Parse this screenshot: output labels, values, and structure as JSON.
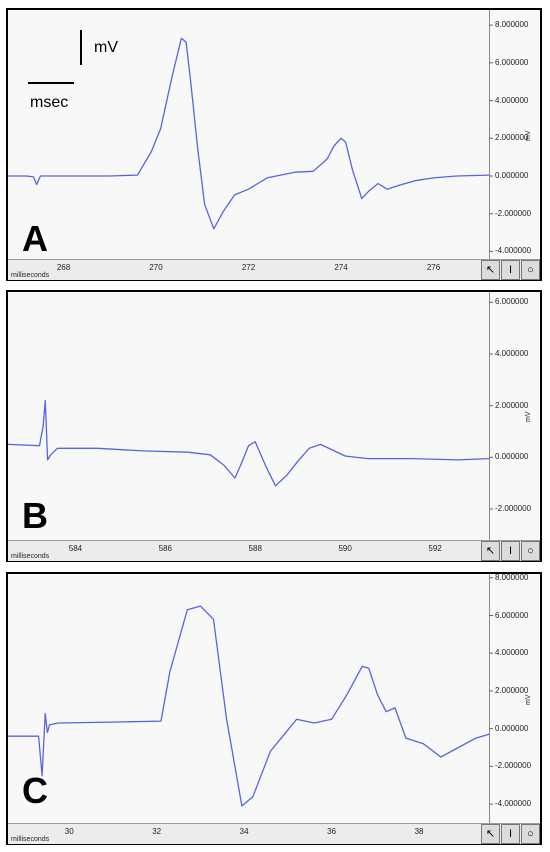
{
  "scale_bar": {
    "v_label": "mV",
    "h_label": "msec"
  },
  "chart_data": [
    {
      "type": "line",
      "panel_label": "A",
      "xlabel": "milliseconds",
      "ylabel": "mV",
      "xlim": [
        266.8,
        277.2
      ],
      "ylim": [
        -4.4,
        8.8
      ],
      "xticks": [
        268,
        270,
        272,
        274,
        276
      ],
      "yticks": [
        "8.000000",
        "6.000000",
        "4.000000",
        "2.000000",
        "0.000000",
        "-2.000000",
        "-4.000000"
      ],
      "line_color": "#5566dd",
      "series": [
        {
          "x": [
            266.8,
            267.2,
            267.35,
            267.42,
            267.5,
            268.0,
            269.0,
            269.6,
            269.9,
            270.1,
            270.35,
            270.55,
            270.65,
            270.75,
            270.9,
            271.05,
            271.25,
            271.45,
            271.7,
            272.0,
            272.4,
            273.0,
            273.4,
            273.7,
            273.85,
            274.0,
            274.1,
            274.25,
            274.45,
            274.6,
            274.8,
            275.0,
            275.25,
            275.6,
            276.0,
            276.5,
            277.2
          ],
          "y": [
            0.0,
            0.0,
            -0.05,
            -0.45,
            0.0,
            0.0,
            0.0,
            0.05,
            1.3,
            2.5,
            5.3,
            7.3,
            7.1,
            5.0,
            1.5,
            -1.5,
            -2.8,
            -1.9,
            -1.0,
            -0.7,
            -0.1,
            0.2,
            0.25,
            0.9,
            1.6,
            2.0,
            1.8,
            0.3,
            -1.2,
            -0.8,
            -0.4,
            -0.7,
            -0.5,
            -0.25,
            -0.1,
            0.0,
            0.05
          ]
        }
      ]
    },
    {
      "type": "line",
      "panel_label": "B",
      "xlabel": "milliseconds",
      "ylabel": "mV",
      "xlim": [
        582.5,
        593.2
      ],
      "ylim": [
        -3.2,
        6.4
      ],
      "xticks": [
        584,
        586,
        588,
        590,
        592
      ],
      "yticks": [
        "6.000000",
        "4.000000",
        "2.000000",
        "0.000000",
        "-2.000000"
      ],
      "line_color": "#5566dd",
      "series": [
        {
          "x": [
            582.5,
            583.2,
            583.28,
            583.33,
            583.38,
            583.45,
            583.6,
            584.5,
            585.5,
            586.5,
            587.0,
            587.3,
            587.55,
            587.7,
            587.85,
            588.0,
            588.25,
            588.45,
            588.7,
            588.95,
            589.2,
            589.45,
            589.7,
            590.0,
            590.5,
            591.5,
            592.5,
            593.2
          ],
          "y": [
            0.5,
            0.45,
            1.2,
            2.2,
            -0.1,
            0.1,
            0.35,
            0.35,
            0.25,
            0.2,
            0.1,
            -0.3,
            -0.8,
            -0.2,
            0.45,
            0.6,
            -0.4,
            -1.1,
            -0.7,
            -0.15,
            0.35,
            0.5,
            0.3,
            0.05,
            -0.05,
            -0.05,
            -0.1,
            -0.05
          ]
        }
      ]
    },
    {
      "type": "line",
      "panel_label": "C",
      "xlabel": "milliseconds",
      "ylabel": "mV",
      "xlim": [
        28.6,
        39.6
      ],
      "ylim": [
        -5.0,
        8.2
      ],
      "xticks": [
        30,
        32,
        34,
        36,
        38
      ],
      "yticks": [
        "8.000000",
        "6.000000",
        "4.000000",
        "2.000000",
        "0.000000",
        "-2.000000",
        "-4.000000"
      ],
      "line_color": "#5566dd",
      "series": [
        {
          "x": [
            28.6,
            29.3,
            29.38,
            29.45,
            29.5,
            29.55,
            29.75,
            31.0,
            32.1,
            32.3,
            32.7,
            33.0,
            33.3,
            33.6,
            33.95,
            34.2,
            34.6,
            35.2,
            35.6,
            36.0,
            36.35,
            36.7,
            36.85,
            37.05,
            37.25,
            37.45,
            37.7,
            38.1,
            38.5,
            38.9,
            39.3,
            39.6
          ],
          "y": [
            -0.4,
            -0.4,
            -2.5,
            0.8,
            -0.2,
            0.2,
            0.3,
            0.35,
            0.4,
            3.0,
            6.3,
            6.5,
            5.8,
            0.5,
            -4.1,
            -3.6,
            -1.2,
            0.5,
            0.3,
            0.5,
            1.8,
            3.3,
            3.2,
            1.8,
            0.9,
            1.1,
            -0.5,
            -0.8,
            -1.5,
            -1.0,
            -0.5,
            -0.3
          ]
        }
      ]
    }
  ]
}
